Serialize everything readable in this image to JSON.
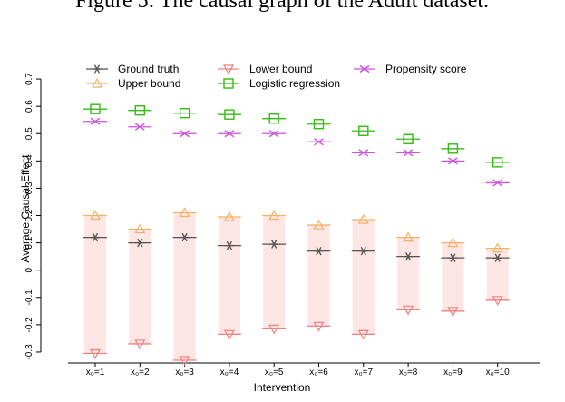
{
  "caption": "Figure 5: The causal graph of the Adult dataset.",
  "chart_data": {
    "type": "interval",
    "x_label": "Intervention",
    "y_label": "Average Causal Effect",
    "categories": [
      "x₀=1",
      "x₀=2",
      "x₀=3",
      "x₀=4",
      "x₀=5",
      "x₀=6",
      "x₀=7",
      "x₀=8",
      "x₀=9",
      "x₀=10"
    ],
    "ylim": [
      -0.34,
      0.79
    ],
    "yticks": [
      -0.3,
      -0.2,
      -0.1,
      0.0,
      0.1,
      0.2,
      0.3,
      0.4,
      0.5,
      0.6,
      0.7
    ],
    "band_color": "#fde6e4",
    "series": [
      {
        "name": "Ground truth",
        "color": "#555555",
        "marker": "star",
        "values": [
          0.12,
          0.1,
          0.12,
          0.09,
          0.095,
          0.07,
          0.07,
          0.05,
          0.045,
          0.045
        ]
      },
      {
        "name": "Upper bound",
        "color": "#f2b266",
        "marker": "triangle-up",
        "values": [
          0.2,
          0.15,
          0.21,
          0.195,
          0.2,
          0.165,
          0.185,
          0.12,
          0.1,
          0.08
        ]
      },
      {
        "name": "Lower bound",
        "color": "#ee8080",
        "marker": "triangle-down",
        "values": [
          -0.305,
          -0.27,
          -0.33,
          -0.235,
          -0.215,
          -0.205,
          -0.235,
          -0.145,
          -0.15,
          -0.11
        ]
      },
      {
        "name": "Logistic regression",
        "color": "#33bb11",
        "marker": "square",
        "values": [
          0.59,
          0.585,
          0.575,
          0.57,
          0.555,
          0.535,
          0.51,
          0.48,
          0.445,
          0.395
        ]
      },
      {
        "name": "Propensity score",
        "color": "#cc55dd",
        "marker": "cross",
        "values": [
          0.545,
          0.525,
          0.5,
          0.5,
          0.5,
          0.47,
          0.43,
          0.43,
          0.4,
          0.32
        ]
      }
    ]
  }
}
